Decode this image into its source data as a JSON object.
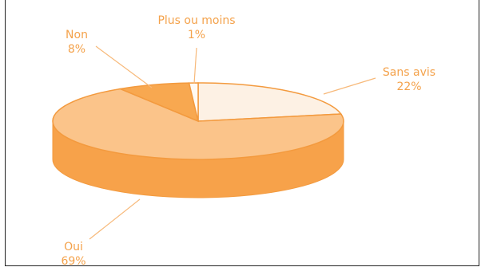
{
  "chart_data": {
    "type": "pie",
    "style": "3d",
    "slices": [
      {
        "label": "Sans avis",
        "percent_label": "22%",
        "value": 22,
        "color": "#fdf1e4"
      },
      {
        "label": "Oui",
        "percent_label": "69%",
        "value": 69,
        "color": "#fbc48a"
      },
      {
        "label": "Non",
        "percent_label": "8%",
        "value": 8,
        "color": "#f8a850"
      },
      {
        "label": "Plus ou moins",
        "percent_label": "1%",
        "value": 1,
        "color": "#fffaf4"
      }
    ],
    "side_color": "#f7a24a",
    "edge_color": "#f39a3e",
    "leader_color": "#f7b97a"
  }
}
